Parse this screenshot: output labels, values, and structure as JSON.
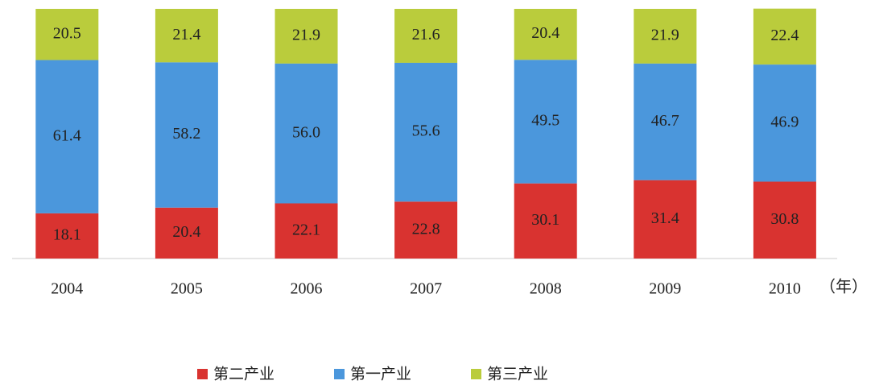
{
  "chart_data": {
    "type": "stacked_bar",
    "categories": [
      "2004",
      "2005",
      "2006",
      "2007",
      "2008",
      "2009",
      "2010"
    ],
    "x_label": "（年）",
    "ylim": [
      0,
      100
    ],
    "series": [
      {
        "name": "第二产业",
        "color": "#d93330",
        "values": [
          18.1,
          20.4,
          22.1,
          22.8,
          30.1,
          31.4,
          30.8
        ],
        "value_labels": [
          "18.1",
          "20.4",
          "22.1",
          "22.8",
          "30.1",
          "31.4",
          "30.8"
        ]
      },
      {
        "name": "第一产业",
        "color": "#4b97dc",
        "values": [
          61.4,
          58.2,
          56.0,
          55.6,
          49.5,
          46.7,
          46.9
        ],
        "value_labels": [
          "61.4",
          "58.2",
          "56.0",
          "55.6",
          "49.5",
          "46.7",
          "46.9"
        ]
      },
      {
        "name": "第三产业",
        "color": "#bacc3c",
        "values": [
          20.5,
          21.4,
          21.9,
          21.6,
          20.4,
          21.9,
          22.4
        ],
        "value_labels": [
          "20.5",
          "21.4",
          "21.9",
          "21.6",
          "20.4",
          "21.9",
          "22.4"
        ]
      }
    ]
  }
}
